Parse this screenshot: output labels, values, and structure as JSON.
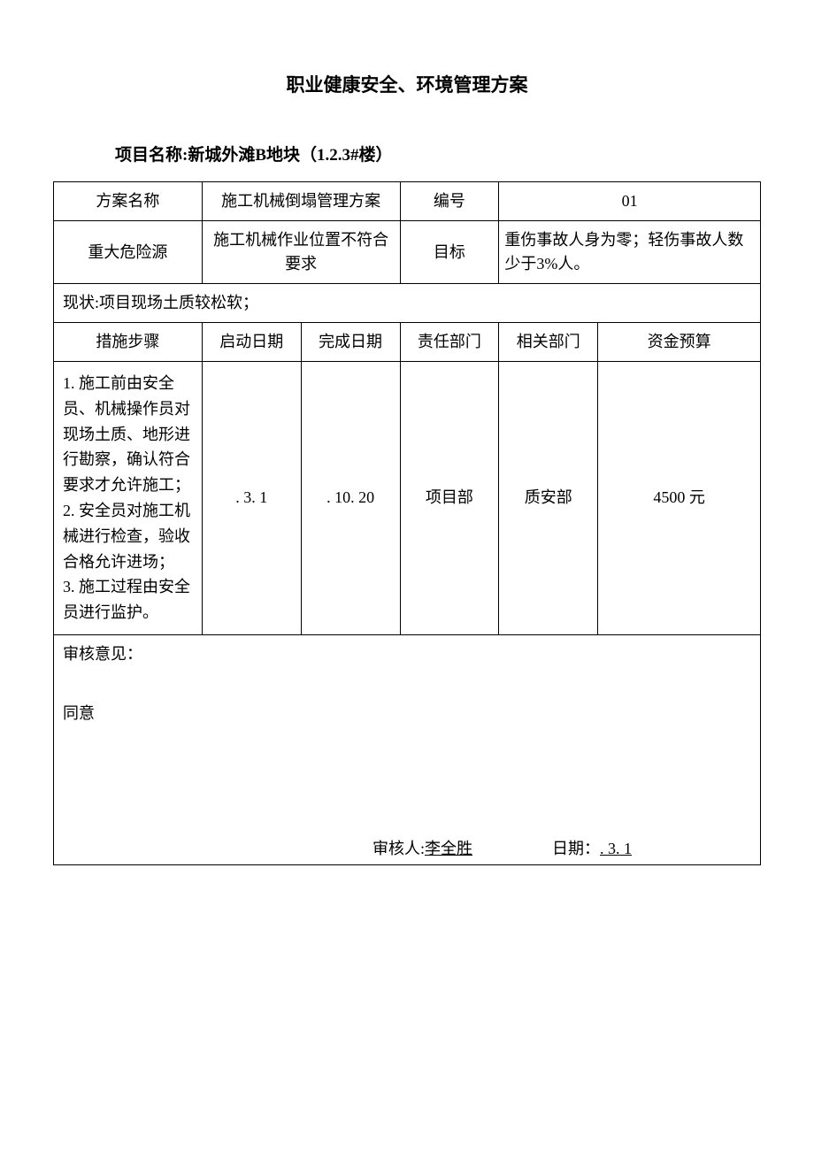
{
  "title": "职业健康安全、环境管理方案",
  "project_label": "项目名称:",
  "project_name": "新城外滩B地块（1.2.3#楼）",
  "row1": {
    "label_plan": "方案名称",
    "plan_name": "施工机械倒塌管理方案",
    "label_number": "编号",
    "number": "01"
  },
  "row2": {
    "label_hazard": "重大危险源",
    "hazard": "施工机械作业位置不符合要求",
    "label_target": "目标",
    "target": "重伤事故人身为零；轻伤事故人数少于3%人。"
  },
  "status_row": "现状:项目现场土质较松软；",
  "headers": {
    "steps": "措施步骤",
    "start_date": "启动日期",
    "end_date": "完成日期",
    "resp_dept": "责任部门",
    "rel_dept": "相关部门",
    "budget": "资金预算"
  },
  "data_row": {
    "steps": "1.  施工前由安全员、机械操作员对现场土质、地形进行勘察，确认符合要求才允许施工；\n2. 安全员对施工机械进行检查，验收合格允许进场；\n3. 施工过程由安全员进行监护。",
    "start_date": ". 3. 1",
    "end_date": ". 10. 20",
    "resp_dept": "项目部",
    "rel_dept": "质安部",
    "budget": "4500 元"
  },
  "opinion": {
    "label": "审核意见：",
    "content": "同意",
    "reviewer_label": "审核人:",
    "reviewer": "李全胜",
    "date_label": "日期：",
    "date": ". 3. 1"
  },
  "layout": {
    "col_widths": {
      "c1": "21%",
      "c2": "14%",
      "c3": "14%",
      "c4": "14%",
      "c5": "14%",
      "c6": "23%"
    }
  }
}
